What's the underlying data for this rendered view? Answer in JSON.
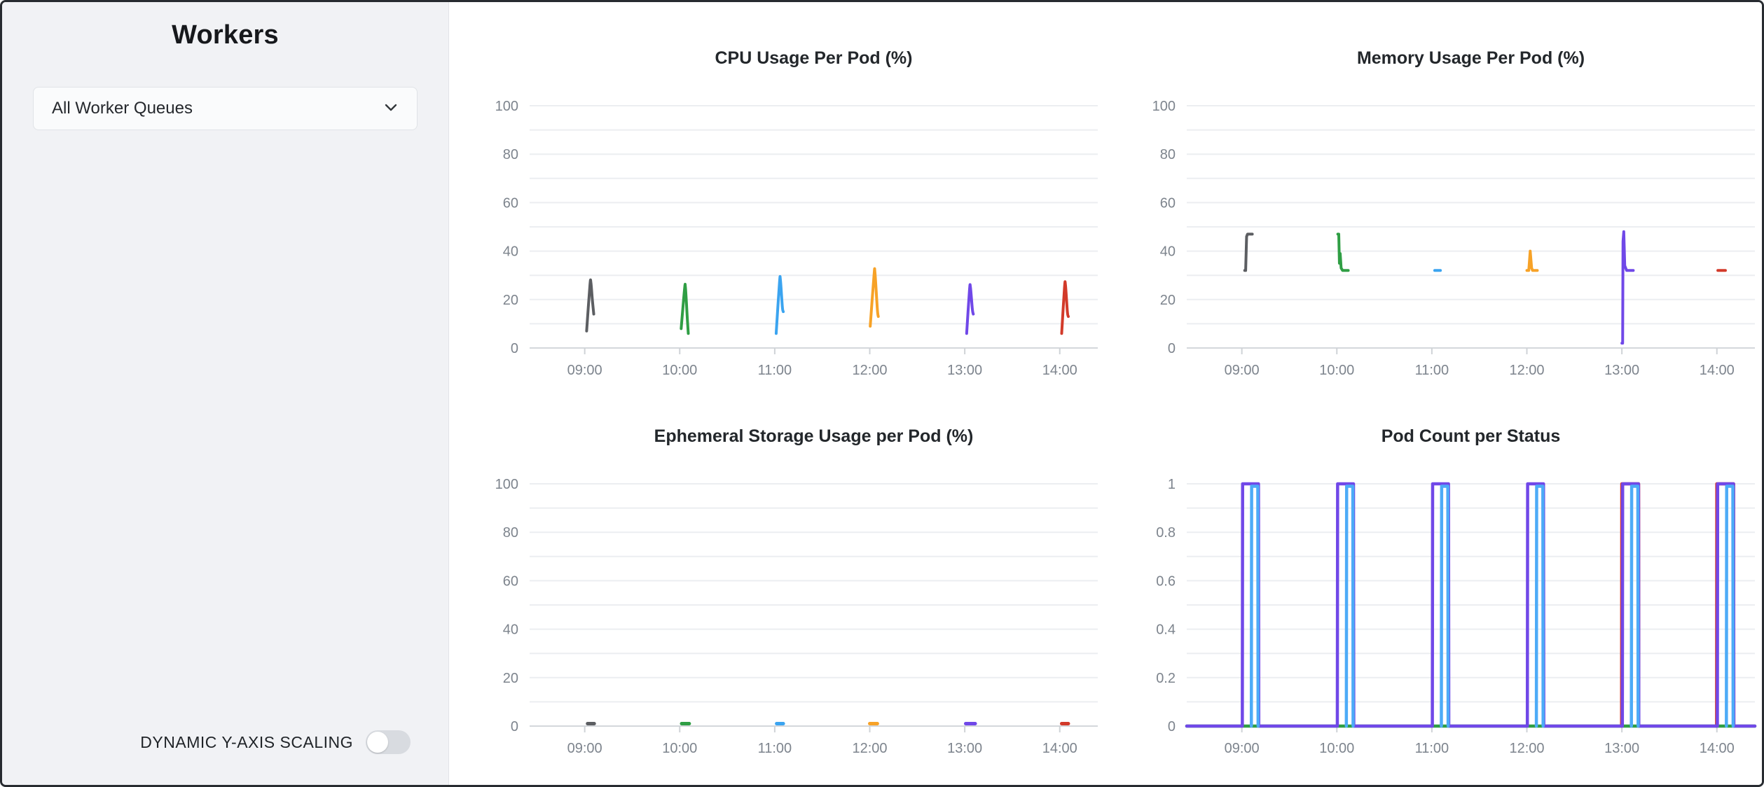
{
  "sidebar": {
    "title": "Workers",
    "queue_select": {
      "value": "All Worker Queues"
    },
    "toggle": {
      "label": "DYNAMIC Y-AXIS SCALING",
      "state": "off"
    }
  },
  "palette": {
    "gray": "#5c5e62",
    "green": "#2f9e44",
    "blue": "#3ba4f0",
    "orange": "#f7a227",
    "purple": "#7048e8",
    "red": "#d23a2a",
    "pod_blue": "#4dabf7",
    "grid": "#eceef1",
    "axis": "#d4d7db",
    "tick_text": "#7d848d",
    "title_text": "#23272b"
  },
  "chart_data": [
    {
      "type": "line",
      "title": "CPU Usage Per Pod (%)",
      "xlim": [
        8.42,
        14.4
      ],
      "ylim": [
        0,
        100
      ],
      "grid_step": 10,
      "x_ticks": [
        {
          "v": 9,
          "label": "09:00"
        },
        {
          "v": 10,
          "label": "10:00"
        },
        {
          "v": 11,
          "label": "11:00"
        },
        {
          "v": 12,
          "label": "12:00"
        },
        {
          "v": 13,
          "label": "13:00"
        },
        {
          "v": 14,
          "label": "14:00"
        }
      ],
      "y_ticks": [
        {
          "v": 0,
          "label": "0"
        },
        {
          "v": 20,
          "label": "20"
        },
        {
          "v": 40,
          "label": "40"
        },
        {
          "v": 60,
          "label": "60"
        },
        {
          "v": 80,
          "label": "80"
        },
        {
          "v": 100,
          "label": "100"
        }
      ],
      "series": [
        {
          "name": "s1",
          "color": "#5c5e62",
          "width": 4,
          "smooth": true,
          "points": [
            [
              9.02,
              7
            ],
            [
              9.055,
              26
            ],
            [
              9.065,
              27
            ],
            [
              9.08,
              20
            ],
            [
              9.095,
              14
            ]
          ]
        },
        {
          "name": "s2",
          "color": "#2f9e44",
          "width": 4,
          "smooth": true,
          "points": [
            [
              10.015,
              8
            ],
            [
              10.05,
              24
            ],
            [
              10.06,
              25
            ],
            [
              10.08,
              12
            ],
            [
              10.09,
              6
            ]
          ]
        },
        {
          "name": "s3",
          "color": "#3ba4f0",
          "width": 4,
          "smooth": true,
          "points": [
            [
              11.015,
              6
            ],
            [
              11.05,
              27
            ],
            [
              11.06,
              28
            ],
            [
              11.08,
              17
            ],
            [
              11.09,
              15
            ]
          ]
        },
        {
          "name": "s4",
          "color": "#f7a227",
          "width": 4,
          "smooth": true,
          "points": [
            [
              12.005,
              9
            ],
            [
              12.045,
              30
            ],
            [
              12.055,
              31
            ],
            [
              12.08,
              16
            ],
            [
              12.09,
              13
            ]
          ]
        },
        {
          "name": "s5",
          "color": "#7048e8",
          "width": 4,
          "smooth": true,
          "points": [
            [
              13.02,
              6
            ],
            [
              13.05,
              24
            ],
            [
              13.06,
              25
            ],
            [
              13.08,
              16
            ],
            [
              13.09,
              14
            ]
          ]
        },
        {
          "name": "s6",
          "color": "#d23a2a",
          "width": 4,
          "smooth": true,
          "points": [
            [
              14.02,
              6
            ],
            [
              14.05,
              25
            ],
            [
              14.06,
              26
            ],
            [
              14.08,
              15
            ],
            [
              14.09,
              13
            ]
          ]
        }
      ]
    },
    {
      "type": "line",
      "title": "Memory Usage Per Pod (%)",
      "xlim": [
        8.42,
        14.4
      ],
      "ylim": [
        0,
        100
      ],
      "grid_step": 10,
      "x_ticks": [
        {
          "v": 9,
          "label": "09:00"
        },
        {
          "v": 10,
          "label": "10:00"
        },
        {
          "v": 11,
          "label": "11:00"
        },
        {
          "v": 12,
          "label": "12:00"
        },
        {
          "v": 13,
          "label": "13:00"
        },
        {
          "v": 14,
          "label": "14:00"
        }
      ],
      "y_ticks": [
        {
          "v": 0,
          "label": "0"
        },
        {
          "v": 20,
          "label": "20"
        },
        {
          "v": 40,
          "label": "40"
        },
        {
          "v": 60,
          "label": "60"
        },
        {
          "v": 80,
          "label": "80"
        },
        {
          "v": 100,
          "label": "100"
        }
      ],
      "series": [
        {
          "name": "s1",
          "color": "#5c5e62",
          "width": 4,
          "points": [
            [
              9.03,
              32
            ],
            [
              9.04,
              32
            ],
            [
              9.05,
              46
            ],
            [
              9.06,
              47
            ],
            [
              9.11,
              47
            ]
          ]
        },
        {
          "name": "s2",
          "color": "#2f9e44",
          "width": 4,
          "points": [
            [
              10.01,
              47
            ],
            [
              10.02,
              47
            ],
            [
              10.027,
              35
            ],
            [
              10.035,
              39
            ],
            [
              10.045,
              33
            ],
            [
              10.06,
              32
            ],
            [
              10.12,
              32
            ]
          ]
        },
        {
          "name": "s3",
          "color": "#3ba4f0",
          "width": 4,
          "points": [
            [
              11.03,
              32
            ],
            [
              11.09,
              32
            ]
          ]
        },
        {
          "name": "s4",
          "color": "#f7a227",
          "width": 4,
          "points": [
            [
              12.0,
              32
            ],
            [
              12.02,
              32
            ],
            [
              12.035,
              40
            ],
            [
              12.05,
              33
            ],
            [
              12.06,
              32
            ],
            [
              12.11,
              32
            ]
          ]
        },
        {
          "name": "s5",
          "color": "#7048e8",
          "width": 4,
          "points": [
            [
              13.0,
              2
            ],
            [
              13.008,
              2
            ],
            [
              13.012,
              44
            ],
            [
              13.02,
              48
            ],
            [
              13.03,
              34
            ],
            [
              13.05,
              32
            ],
            [
              13.12,
              32
            ]
          ]
        },
        {
          "name": "s6",
          "color": "#d23a2a",
          "width": 4,
          "points": [
            [
              14.01,
              32
            ],
            [
              14.09,
              32
            ]
          ]
        }
      ]
    },
    {
      "type": "line",
      "title": "Ephemeral Storage Usage per Pod (%)",
      "xlim": [
        8.42,
        14.4
      ],
      "ylim": [
        0,
        100
      ],
      "grid_step": 10,
      "x_ticks": [
        {
          "v": 9,
          "label": "09:00"
        },
        {
          "v": 10,
          "label": "10:00"
        },
        {
          "v": 11,
          "label": "11:00"
        },
        {
          "v": 12,
          "label": "12:00"
        },
        {
          "v": 13,
          "label": "13:00"
        },
        {
          "v": 14,
          "label": "14:00"
        }
      ],
      "y_ticks": [
        {
          "v": 0,
          "label": "0"
        },
        {
          "v": 20,
          "label": "20"
        },
        {
          "v": 40,
          "label": "40"
        },
        {
          "v": 60,
          "label": "60"
        },
        {
          "v": 80,
          "label": "80"
        },
        {
          "v": 100,
          "label": "100"
        }
      ],
      "series": [
        {
          "name": "s1",
          "color": "#5c5e62",
          "width": 5,
          "points": [
            [
              9.03,
              1
            ],
            [
              9.1,
              1
            ]
          ]
        },
        {
          "name": "s2",
          "color": "#2f9e44",
          "width": 5,
          "points": [
            [
              10.02,
              1
            ],
            [
              10.1,
              1
            ]
          ]
        },
        {
          "name": "s3",
          "color": "#3ba4f0",
          "width": 5,
          "points": [
            [
              11.02,
              1
            ],
            [
              11.09,
              1
            ]
          ]
        },
        {
          "name": "s4",
          "color": "#f7a227",
          "width": 5,
          "points": [
            [
              12.0,
              1
            ],
            [
              12.08,
              1
            ]
          ]
        },
        {
          "name": "s5",
          "color": "#7048e8",
          "width": 5,
          "points": [
            [
              13.01,
              1
            ],
            [
              13.11,
              1
            ]
          ]
        },
        {
          "name": "s6",
          "color": "#d23a2a",
          "width": 5,
          "points": [
            [
              14.02,
              1
            ],
            [
              14.09,
              1
            ]
          ]
        }
      ]
    },
    {
      "type": "line",
      "title": "Pod Count per Status",
      "xlim": [
        8.42,
        14.4
      ],
      "ylim": [
        0,
        1
      ],
      "grid_step": 0.1,
      "x_ticks": [
        {
          "v": 9,
          "label": "09:00"
        },
        {
          "v": 10,
          "label": "10:00"
        },
        {
          "v": 11,
          "label": "11:00"
        },
        {
          "v": 12,
          "label": "12:00"
        },
        {
          "v": 13,
          "label": "13:00"
        },
        {
          "v": 14,
          "label": "14:00"
        }
      ],
      "y_ticks": [
        {
          "v": 0,
          "label": "0"
        },
        {
          "v": 0.2,
          "label": "0.2"
        },
        {
          "v": 0.4,
          "label": "0.4"
        },
        {
          "v": 0.6,
          "label": "0.6"
        },
        {
          "v": 0.8,
          "label": "0.8"
        },
        {
          "v": 1,
          "label": "1"
        }
      ],
      "series": [
        {
          "name": "red-status",
          "color": "#d6392f",
          "width": 4.5,
          "points": [
            [
              [
                12.997,
                0
              ],
              [
                12.999,
                1
              ],
              [
                13.176,
                1
              ],
              [
                13.178,
                0
              ]
            ],
            [
              [
                13.997,
                0
              ],
              [
                13.999,
                1
              ],
              [
                14.176,
                1
              ],
              [
                14.178,
                0
              ]
            ]
          ]
        },
        {
          "name": "green-status",
          "color": "#2f9e44",
          "width": 4.5,
          "points": [
            [
              8.42,
              0
            ],
            [
              14.4,
              0
            ]
          ]
        },
        {
          "name": "purple-status",
          "color": "#7048e8",
          "width": 4.5,
          "points": [
            [
              8.42,
              0
            ],
            [
              9.005,
              0
            ],
            [
              9.008,
              1
            ],
            [
              9.175,
              1
            ],
            [
              9.178,
              0
            ],
            [
              10.005,
              0
            ],
            [
              10.008,
              1
            ],
            [
              10.175,
              1
            ],
            [
              10.178,
              0
            ],
            [
              11.005,
              0
            ],
            [
              11.008,
              1
            ],
            [
              11.175,
              1
            ],
            [
              11.178,
              0
            ],
            [
              12.005,
              0
            ],
            [
              12.008,
              1
            ],
            [
              12.175,
              1
            ],
            [
              12.178,
              0
            ],
            [
              13.005,
              0
            ],
            [
              13.008,
              1
            ],
            [
              13.175,
              1
            ],
            [
              13.178,
              0
            ],
            [
              14.005,
              0
            ],
            [
              14.008,
              1
            ],
            [
              14.175,
              1
            ],
            [
              14.178,
              0
            ],
            [
              14.4,
              0
            ]
          ]
        },
        {
          "name": "blue-status",
          "color": "#4dabf7",
          "width": 4.5,
          "points": [
            [
              [
                9.1,
                0
              ],
              [
                9.103,
                0.99
              ],
              [
                9.168,
                0.99
              ],
              [
                9.171,
                0
              ]
            ],
            [
              [
                10.1,
                0
              ],
              [
                10.103,
                0.99
              ],
              [
                10.168,
                0.99
              ],
              [
                10.171,
                0
              ]
            ],
            [
              [
                11.1,
                0
              ],
              [
                11.103,
                0.99
              ],
              [
                11.168,
                0.99
              ],
              [
                11.171,
                0
              ]
            ],
            [
              [
                12.1,
                0
              ],
              [
                12.103,
                0.99
              ],
              [
                12.168,
                0.99
              ],
              [
                12.171,
                0
              ]
            ],
            [
              [
                13.1,
                0
              ],
              [
                13.103,
                0.99
              ],
              [
                13.168,
                0.99
              ],
              [
                13.171,
                0
              ]
            ],
            [
              [
                14.1,
                0
              ],
              [
                14.103,
                0.99
              ],
              [
                14.168,
                0.99
              ],
              [
                14.171,
                0
              ]
            ]
          ]
        }
      ]
    }
  ]
}
